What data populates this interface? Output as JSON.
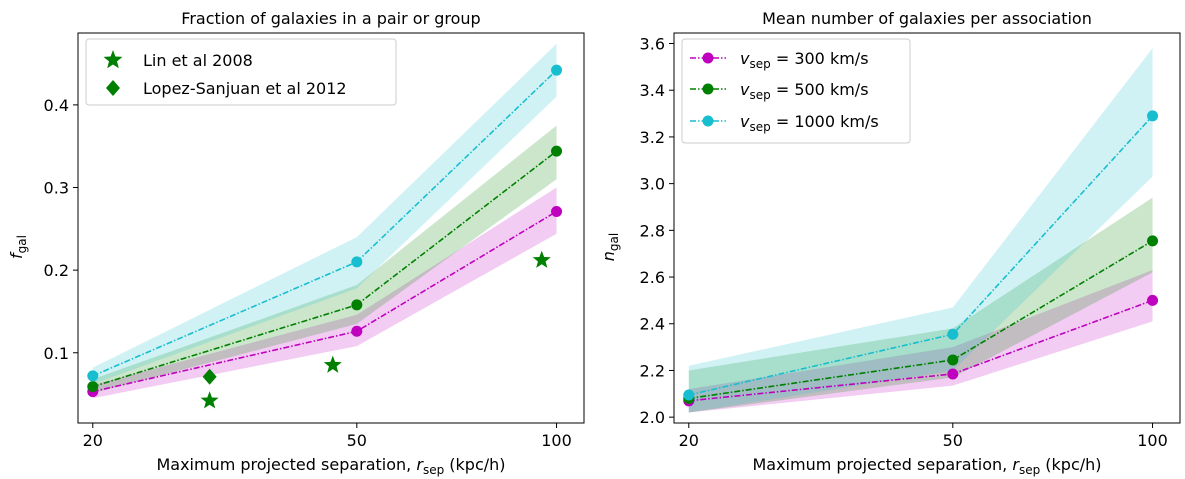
{
  "chart_data": [
    {
      "type": "line",
      "title": "Fraction of galaxies in a pair or group",
      "xlabel": "Maximum projected separation,",
      "xlabel_var": "r",
      "xlabel_sub": "sep",
      "xlabel_unit": "(kpc/h)",
      "ylabel_var": "f",
      "ylabel_sub": "gal",
      "x_scale": "log",
      "xlim": [
        19,
        110
      ],
      "ylim": [
        0.015,
        0.487
      ],
      "xticks": [
        20,
        50,
        100
      ],
      "yticks": [
        0.1,
        0.2,
        0.3,
        0.4
      ],
      "series": [
        {
          "name": "300 km/s",
          "color": "#bf00bf",
          "x": [
            20,
            50,
            100
          ],
          "y": [
            0.053,
            0.126,
            0.271
          ],
          "band_low": [
            0.045,
            0.108,
            0.244
          ],
          "band_high": [
            0.061,
            0.146,
            0.3
          ]
        },
        {
          "name": "500 km/s",
          "color": "#008000",
          "x": [
            20,
            50,
            100
          ],
          "y": [
            0.059,
            0.158,
            0.344
          ],
          "band_low": [
            0.051,
            0.135,
            0.31
          ],
          "band_high": [
            0.068,
            0.182,
            0.375
          ]
        },
        {
          "name": "1000 km/s",
          "color": "#17becf",
          "x": [
            20,
            50,
            100
          ],
          "y": [
            0.072,
            0.21,
            0.442
          ],
          "band_low": [
            0.062,
            0.178,
            0.41
          ],
          "band_high": [
            0.082,
            0.24,
            0.474
          ]
        }
      ],
      "observations": [
        {
          "name": "Lin et al 2008",
          "marker": "star",
          "color": "#008000",
          "x": [
            30,
            46,
            95
          ],
          "y": [
            0.042,
            0.085,
            0.212
          ]
        },
        {
          "name": "Lopez-Sanjuan et al 2012",
          "marker": "diamond",
          "color": "#008000",
          "x": [
            30
          ],
          "y": [
            0.071
          ]
        }
      ],
      "legend": {
        "position": "top-left",
        "entries": [
          "Lin et al 2008",
          "Lopez-Sanjuan et al 2012"
        ]
      }
    },
    {
      "type": "line",
      "title": "Mean number of galaxies per association",
      "xlabel": "Maximum projected separation,",
      "xlabel_var": "r",
      "xlabel_sub": "sep",
      "xlabel_unit": "(kpc/h)",
      "ylabel_var": "n",
      "ylabel_sub": "gal",
      "x_scale": "log",
      "xlim": [
        19,
        110
      ],
      "ylim": [
        1.975,
        3.645
      ],
      "xticks": [
        20,
        50,
        100
      ],
      "yticks": [
        2.0,
        2.2,
        2.4,
        2.6,
        2.8,
        3.0,
        3.2,
        3.4,
        3.6
      ],
      "ytick_labels": [
        "2.0",
        "2.2",
        "2.4",
        "2.6",
        "2.8",
        "3.0",
        "3.2",
        "3.4",
        "3.6"
      ],
      "series": [
        {
          "name": "300 km/s",
          "color": "#bf00bf",
          "x": [
            20,
            50,
            100
          ],
          "y": [
            2.07,
            2.185,
            2.5
          ],
          "band_low": [
            2.02,
            2.135,
            2.41
          ],
          "band_high": [
            2.12,
            2.3,
            2.63
          ]
        },
        {
          "name": "500 km/s",
          "color": "#008000",
          "x": [
            20,
            50,
            100
          ],
          "y": [
            2.08,
            2.245,
            2.755
          ],
          "band_low": [
            2.02,
            2.17,
            2.62
          ],
          "band_high": [
            2.2,
            2.38,
            2.94
          ]
        },
        {
          "name": "1000 km/s",
          "color": "#17becf",
          "x": [
            20,
            50,
            100
          ],
          "y": [
            2.095,
            2.355,
            3.29
          ],
          "band_low": [
            2.02,
            2.2,
            3.03
          ],
          "band_high": [
            2.22,
            2.47,
            3.58
          ]
        }
      ],
      "legend": {
        "position": "top-left",
        "var": "v",
        "sub": "sep",
        "entries": [
          "= 300 km/s",
          "= 500 km/s",
          "= 1000 km/s"
        ]
      }
    }
  ]
}
